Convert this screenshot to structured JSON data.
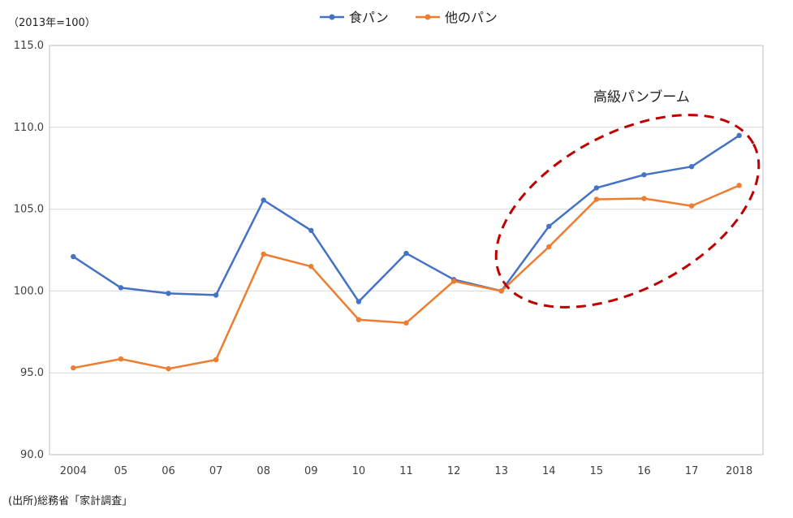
{
  "chart_data": {
    "type": "line",
    "unit_note": "（2013年=100）",
    "source_note": "(出所)総務省「家計調査」",
    "annotation": "高級パンブーム",
    "categories": [
      "2004",
      "05",
      "06",
      "07",
      "08",
      "09",
      "10",
      "11",
      "12",
      "13",
      "14",
      "15",
      "16",
      "17",
      "2018"
    ],
    "ylim": [
      90.0,
      115.0
    ],
    "yticks": [
      "90.0",
      "95.0",
      "100.0",
      "105.0",
      "110.0",
      "115.0"
    ],
    "ytick_values": [
      90,
      95,
      100,
      105,
      110,
      115
    ],
    "grid": true,
    "legend_position": "top-center",
    "series": [
      {
        "name": "食パン",
        "color": "#4472C4",
        "values": [
          102.1,
          100.2,
          99.85,
          99.75,
          105.55,
          103.7,
          99.35,
          102.3,
          100.7,
          100.0,
          103.95,
          106.3,
          107.1,
          107.6,
          109.5
        ]
      },
      {
        "name": "他のパン",
        "color": "#ED7D31",
        "values": [
          95.3,
          95.85,
          95.25,
          95.8,
          102.25,
          101.5,
          98.25,
          98.05,
          100.6,
          100.0,
          102.7,
          105.6,
          105.65,
          105.2,
          106.45
        ]
      }
    ],
    "highlight_color": "#C00000"
  }
}
